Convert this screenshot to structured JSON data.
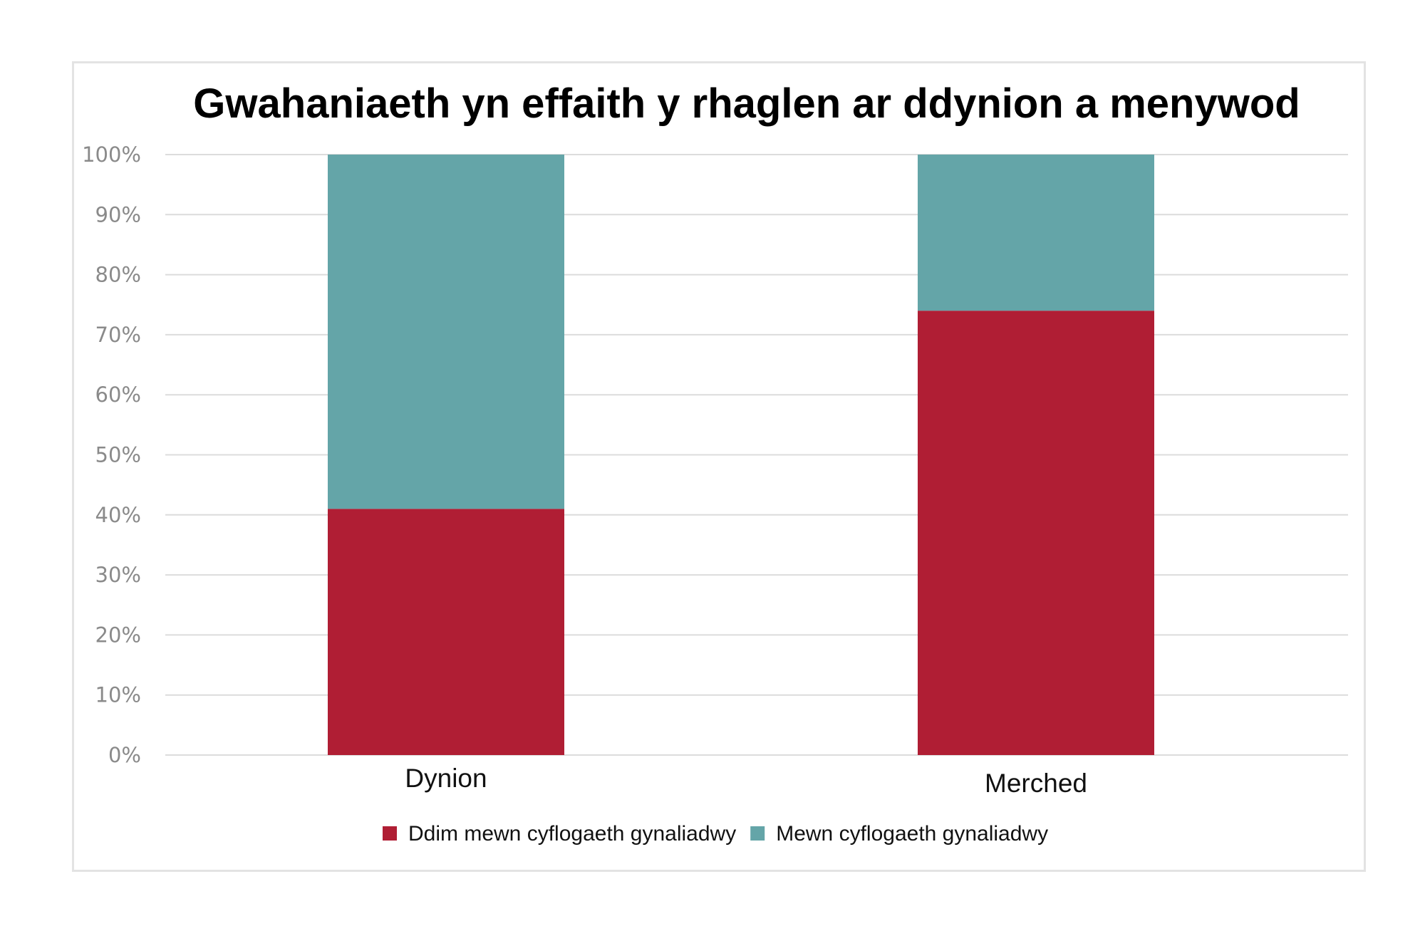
{
  "chart_data": {
    "type": "bar",
    "stacked": true,
    "title": "Gwahaniaeth yn effaith y rhaglen ar ddynion a menywod",
    "categories": [
      "Dynion",
      "Merched"
    ],
    "series": [
      {
        "name": "Ddim mewn cyflogaeth gynaliadwy",
        "values": [
          41,
          74
        ],
        "color": "#b01e34"
      },
      {
        "name": "Mewn cyflogaeth gynaliadwy",
        "values": [
          59,
          26
        ],
        "color": "#64a5a8"
      }
    ],
    "y_ticks": [
      "0%",
      "10%",
      "20%",
      "30%",
      "40%",
      "50%",
      "60%",
      "70%",
      "80%",
      "90%",
      "100%"
    ],
    "ylim": [
      0,
      100
    ],
    "grid": true,
    "legend_position": "bottom"
  }
}
